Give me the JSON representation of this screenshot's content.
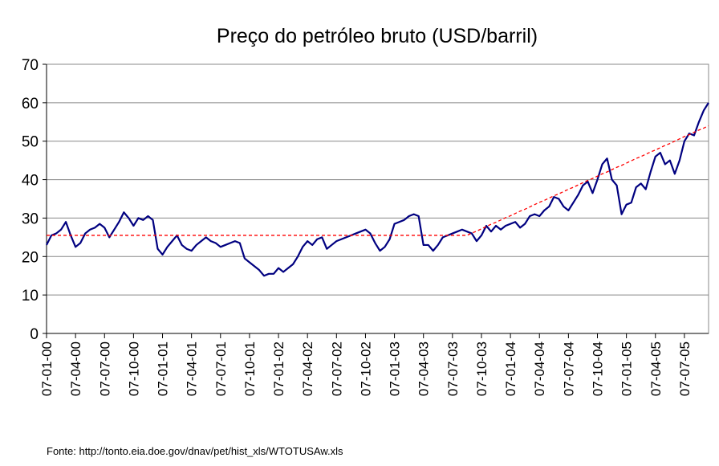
{
  "chart_data": {
    "type": "line",
    "title": "Preço do petróleo bruto (USD/barril)",
    "source": "Fonte: http://tonto.eia.doe.gov/dnav/pet/hist_xls/WTOTUSAw.xls",
    "categories": [
      "07-01-00",
      null,
      null,
      null,
      null,
      null,
      "07-04-00",
      null,
      null,
      null,
      null,
      null,
      "07-07-00",
      null,
      null,
      null,
      null,
      null,
      "07-10-00",
      null,
      null,
      null,
      null,
      null,
      "07-01-01",
      null,
      null,
      null,
      null,
      null,
      "07-04-01",
      null,
      null,
      null,
      null,
      null,
      "07-07-01",
      null,
      null,
      null,
      null,
      null,
      "07-10-01",
      null,
      null,
      null,
      null,
      null,
      "07-01-02",
      null,
      null,
      null,
      null,
      null,
      "07-04-02",
      null,
      null,
      null,
      null,
      null,
      "07-07-02",
      null,
      null,
      null,
      null,
      null,
      "07-10-02",
      null,
      null,
      null,
      null,
      null,
      "07-01-03",
      null,
      null,
      null,
      null,
      null,
      "07-04-03",
      null,
      null,
      null,
      null,
      null,
      "07-07-03",
      null,
      null,
      null,
      null,
      null,
      "07-10-03",
      null,
      null,
      null,
      null,
      null,
      "07-01-04",
      null,
      null,
      null,
      null,
      null,
      "07-04-04",
      null,
      null,
      null,
      null,
      null,
      "07-07-04",
      null,
      null,
      null,
      null,
      null,
      "07-10-04",
      null,
      null,
      null,
      null,
      null,
      "07-01-05",
      null,
      null,
      null,
      null,
      null,
      "07-04-05",
      null,
      null,
      null,
      null,
      null,
      "07-07-05",
      null,
      null,
      null,
      null,
      null
    ],
    "series": [
      {
        "color": "#000080",
        "values": [
          23,
          25.5,
          26,
          27,
          29,
          25.5,
          22.5,
          23.5,
          26,
          27,
          27.5,
          28.5,
          27.5,
          25,
          27,
          29,
          31.5,
          30,
          28,
          30,
          29.5,
          30.5,
          29.5,
          22,
          20.5,
          22.5,
          24,
          25.5,
          23,
          22,
          21.5,
          23,
          24,
          25,
          24,
          23.5,
          22.5,
          23,
          23.5,
          24,
          23.5,
          19.5,
          18.5,
          17.5,
          16.5,
          15,
          15.5,
          15.5,
          17,
          16,
          17,
          18,
          20,
          22.5,
          24,
          23,
          24.5,
          25,
          22,
          23,
          24,
          24.5,
          25,
          25.5,
          26,
          26.5,
          27,
          26,
          23.5,
          21.5,
          22.5,
          24.5,
          28.5,
          29,
          29.5,
          30.5,
          31,
          30.5,
          23,
          23,
          21.5,
          23,
          25,
          25.5,
          26,
          26.5,
          27,
          26.5,
          26,
          24,
          25.5,
          28,
          26.5,
          28,
          27,
          28,
          28.5,
          29,
          27.5,
          28.5,
          30.5,
          31,
          30.5,
          32,
          33,
          35.5,
          35,
          33,
          32,
          34,
          36,
          38.5,
          39.5,
          36.5,
          40,
          44,
          45.5,
          40,
          38.5,
          31,
          33.5,
          34,
          38,
          39,
          37.5,
          42,
          46,
          47,
          44,
          45,
          41.5,
          45,
          50,
          52,
          51.5,
          55,
          58,
          60
        ]
      },
      {
        "color": "#ff0000",
        "dashed": true,
        "values": [
          25.5,
          25.5,
          25.5,
          25.5,
          25.5,
          25.5,
          25.5,
          25.5,
          25.5,
          25.5,
          25.5,
          25.5,
          25.5,
          25.5,
          25.5,
          25.5,
          25.5,
          25.5,
          25.5,
          25.5,
          25.5,
          25.5,
          25.5,
          25.5,
          25.5,
          25.5,
          25.5,
          25.5,
          25.5,
          25.5,
          25.5,
          25.5,
          25.5,
          25.5,
          25.5,
          25.5,
          25.5,
          25.5,
          25.5,
          25.5,
          25.5,
          25.5,
          25.5,
          25.5,
          25.5,
          25.5,
          25.5,
          25.5,
          25.5,
          25.5,
          25.5,
          25.5,
          25.5,
          25.5,
          25.5,
          25.5,
          25.5,
          25.5,
          25.5,
          25.5,
          25.5,
          25.5,
          25.5,
          25.5,
          25.5,
          25.5,
          25.5,
          25.5,
          25.5,
          25.5,
          25.5,
          25.5,
          25.5,
          25.5,
          25.5,
          25.5,
          25.5,
          25.5,
          25.5,
          25.5,
          25.5,
          25.5,
          25.5,
          25.5,
          25.5,
          25.5,
          25.5,
          25.5,
          26.1,
          26.6,
          27.2,
          27.8,
          28.4,
          28.9,
          29.5,
          30.1,
          30.6,
          31.2,
          31.8,
          32.3,
          32.9,
          33.5,
          34.1,
          34.6,
          35.2,
          35.8,
          36.3,
          36.9,
          37.5,
          38,
          38.6,
          39.2,
          39.8,
          40.3,
          40.9,
          41.5,
          42,
          42.6,
          43.2,
          43.7,
          44.3,
          44.9,
          45.5,
          46,
          46.6,
          47.2,
          47.7,
          48.3,
          48.9,
          49.4,
          50,
          50.6,
          51.2,
          51.7,
          52.3,
          52.9,
          53.4,
          54
        ]
      }
    ],
    "ylim": [
      0,
      70
    ],
    "yticks": [
      0,
      10,
      20,
      30,
      40,
      50,
      60,
      70
    ],
    "grid": true
  }
}
